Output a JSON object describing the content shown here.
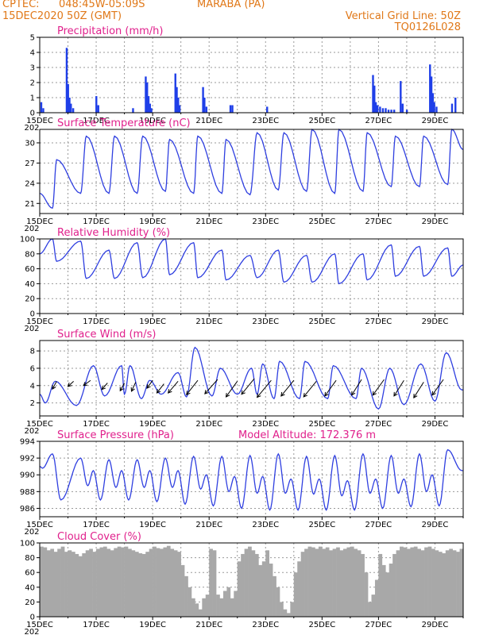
{
  "header": {
    "source": "CPTEC:",
    "coords": "048:45W-05:09S",
    "location": "MARABA (PA)",
    "run_time": "15DEC2020 50Z (GMT)",
    "grid_line": "Vertical Grid Line: 50Z",
    "product_code": "TQ0126L028"
  },
  "colors": {
    "header_text": "#e07818",
    "panel_title": "#e0208c",
    "series_line": "#2f3fe0",
    "bar_fill": "#1f3fe8",
    "cloud_fill": "#a8a8a8",
    "grid": "#9a9a9a"
  },
  "x_axis": {
    "start": "15DEC2020",
    "end": "30DEC2020",
    "tick_labels": [
      "15DEC",
      "17DEC",
      "19DEC",
      "21DEC",
      "23DEC",
      "25DEC",
      "27DEC",
      "29DEC"
    ],
    "year_fragment": "202"
  },
  "chart_data": [
    {
      "type": "bar",
      "title": "Precipitation (mm/h)",
      "ylim": [
        0,
        5
      ],
      "yticks": [
        0,
        1,
        2,
        3,
        4,
        5
      ],
      "grid": true,
      "events": [
        {
          "day": 0.05,
          "value": 0.7
        },
        {
          "day": 0.12,
          "value": 0.3
        },
        {
          "day": 0.95,
          "value": 4.3
        },
        {
          "day": 1.0,
          "value": 1.9
        },
        {
          "day": 1.05,
          "value": 1.0
        },
        {
          "day": 1.1,
          "value": 0.6
        },
        {
          "day": 1.18,
          "value": 0.3
        },
        {
          "day": 2.0,
          "value": 1.1
        },
        {
          "day": 2.07,
          "value": 0.5
        },
        {
          "day": 3.3,
          "value": 0.3
        },
        {
          "day": 3.75,
          "value": 2.4
        },
        {
          "day": 3.8,
          "value": 2.0
        },
        {
          "day": 3.85,
          "value": 1.1
        },
        {
          "day": 3.9,
          "value": 0.6
        },
        {
          "day": 3.95,
          "value": 0.3
        },
        {
          "day": 4.8,
          "value": 2.6
        },
        {
          "day": 4.85,
          "value": 1.7
        },
        {
          "day": 4.9,
          "value": 1.0
        },
        {
          "day": 4.95,
          "value": 0.5
        },
        {
          "day": 5.78,
          "value": 1.7
        },
        {
          "day": 5.83,
          "value": 1.0
        },
        {
          "day": 5.9,
          "value": 0.4
        },
        {
          "day": 6.75,
          "value": 0.5
        },
        {
          "day": 6.82,
          "value": 0.5
        },
        {
          "day": 8.05,
          "value": 0.4
        },
        {
          "day": 11.8,
          "value": 2.5
        },
        {
          "day": 11.85,
          "value": 1.8
        },
        {
          "day": 11.9,
          "value": 0.7
        },
        {
          "day": 11.96,
          "value": 0.5
        },
        {
          "day": 12.05,
          "value": 0.4
        },
        {
          "day": 12.15,
          "value": 0.3
        },
        {
          "day": 12.25,
          "value": 0.3
        },
        {
          "day": 12.35,
          "value": 0.2
        },
        {
          "day": 12.45,
          "value": 0.2
        },
        {
          "day": 12.55,
          "value": 0.2
        },
        {
          "day": 12.78,
          "value": 2.1
        },
        {
          "day": 12.85,
          "value": 0.6
        },
        {
          "day": 13.0,
          "value": 0.2
        },
        {
          "day": 13.82,
          "value": 3.2
        },
        {
          "day": 13.87,
          "value": 2.4
        },
        {
          "day": 13.92,
          "value": 1.3
        },
        {
          "day": 13.97,
          "value": 0.7
        },
        {
          "day": 14.05,
          "value": 0.4
        },
        {
          "day": 14.6,
          "value": 0.6
        },
        {
          "day": 14.72,
          "value": 1.0
        }
      ]
    },
    {
      "type": "line",
      "title": "Surface Temperature (nC)",
      "ylim": [
        19.5,
        32
      ],
      "yticks": [
        21,
        24,
        27,
        30
      ],
      "grid": true,
      "max_times": [
        0.6,
        1.65,
        2.65,
        3.65,
        4.6,
        5.6,
        6.6,
        7.7,
        8.65,
        9.65,
        10.6,
        11.6,
        12.6,
        13.6,
        14.6
      ],
      "max_values": [
        27.5,
        31,
        31,
        31,
        30.5,
        31,
        30.5,
        31.5,
        31.5,
        32,
        32,
        31.5,
        31,
        31,
        32
      ],
      "min_times": [
        0.45,
        1.45,
        2.45,
        3.45,
        4.45,
        5.45,
        6.45,
        7.45,
        8.45,
        9.45,
        10.45,
        11.45,
        12.45,
        13.45,
        14.45
      ],
      "min_values": [
        20.3,
        22.5,
        22.5,
        22.5,
        22.8,
        22.5,
        22.5,
        22.3,
        23,
        22.8,
        22.5,
        22.8,
        23.5,
        23.5,
        23.8
      ],
      "start_value": 22.5,
      "end_value": 29
    },
    {
      "type": "line",
      "title": "Relative Humidity (%)",
      "ylim": [
        0,
        100
      ],
      "yticks": [
        0,
        20,
        40,
        60,
        80,
        100
      ],
      "grid": true,
      "max_times": [
        0.45,
        1.45,
        2.45,
        3.45,
        4.45,
        5.45,
        6.45,
        7.45,
        8.45,
        9.45,
        10.45,
        11.45,
        12.45,
        13.45,
        14.45
      ],
      "max_values": [
        100,
        97,
        85,
        95,
        100,
        95,
        85,
        78,
        85,
        78,
        80,
        80,
        92,
        90,
        88
      ],
      "min_times": [
        0.6,
        1.65,
        2.65,
        3.65,
        4.6,
        5.6,
        6.6,
        7.7,
        8.65,
        9.65,
        10.6,
        11.6,
        12.6,
        13.6,
        14.6
      ],
      "min_values": [
        70,
        47,
        47,
        48,
        52,
        48,
        45,
        48,
        42,
        42,
        40,
        45,
        50,
        50,
        50
      ],
      "start_value": 80,
      "end_value": 65
    },
    {
      "type": "line",
      "title": "Surface Wind (m/s)",
      "ylim": [
        0.5,
        9.2
      ],
      "yticks": [
        2,
        4,
        6,
        8
      ],
      "grid": true,
      "max_times": [
        0.55,
        1.9,
        2.9,
        3.2,
        3.9,
        4.9,
        5.5,
        6.4,
        7.5,
        7.9,
        8.5,
        9.4,
        10.4,
        11.4,
        12.4,
        13.5,
        14.4
      ],
      "max_values": [
        4.5,
        6.3,
        6.3,
        6.3,
        4.6,
        5.5,
        8.4,
        6.0,
        6.0,
        6.5,
        6.8,
        6.8,
        6.3,
        6.0,
        6.0,
        6.5,
        7.8
      ],
      "min_times": [
        0.2,
        1.3,
        2.3,
        3.0,
        3.6,
        4.3,
        5.2,
        6.1,
        7.0,
        7.7,
        8.3,
        9.2,
        10.2,
        11.2,
        12.0,
        12.9,
        14.0,
        14.95
      ],
      "min_values": [
        2.0,
        1.7,
        2.8,
        3.0,
        2.5,
        3.0,
        2.7,
        2.8,
        3.0,
        3.0,
        2.5,
        2.5,
        2.5,
        2.5,
        1.3,
        1.8,
        2.2,
        3.5
      ],
      "start_value": 3.0,
      "end_value": 3.5,
      "arrows": [
        {
          "day": 0.6,
          "speed": 4.5,
          "dx": -0.15,
          "dy": 0.3
        },
        {
          "day": 1.2,
          "speed": 4.5,
          "dx": -0.2,
          "dy": 0.2
        },
        {
          "day": 1.8,
          "speed": 4.6,
          "dx": -0.25,
          "dy": 0.2
        },
        {
          "day": 2.4,
          "speed": 4.3,
          "dx": -0.2,
          "dy": 0.25
        },
        {
          "day": 3.0,
          "speed": 4.3,
          "dx": -0.15,
          "dy": 0.3
        },
        {
          "day": 3.4,
          "speed": 4.4,
          "dx": -0.15,
          "dy": 0.35
        },
        {
          "day": 4.0,
          "speed": 4.6,
          "dx": -0.2,
          "dy": 0.3
        },
        {
          "day": 4.4,
          "speed": 4.2,
          "dx": -0.25,
          "dy": 0.35
        },
        {
          "day": 4.9,
          "speed": 4.5,
          "dx": -0.35,
          "dy": 0.45
        },
        {
          "day": 5.6,
          "speed": 4.6,
          "dx": -0.4,
          "dy": 0.55
        },
        {
          "day": 6.3,
          "speed": 4.7,
          "dx": -0.45,
          "dy": 0.55
        },
        {
          "day": 7.0,
          "speed": 4.5,
          "dx": -0.4,
          "dy": 0.6
        },
        {
          "day": 7.6,
          "speed": 4.8,
          "dx": -0.45,
          "dy": 0.6
        },
        {
          "day": 8.2,
          "speed": 4.6,
          "dx": -0.5,
          "dy": 0.65
        },
        {
          "day": 9.0,
          "speed": 4.6,
          "dx": -0.45,
          "dy": 0.6
        },
        {
          "day": 9.8,
          "speed": 4.5,
          "dx": -0.45,
          "dy": 0.6
        },
        {
          "day": 10.5,
          "speed": 4.6,
          "dx": -0.4,
          "dy": 0.6
        },
        {
          "day": 11.4,
          "speed": 4.7,
          "dx": -0.35,
          "dy": 0.6
        },
        {
          "day": 12.2,
          "speed": 4.7,
          "dx": -0.4,
          "dy": 0.6
        },
        {
          "day": 12.9,
          "speed": 4.6,
          "dx": -0.35,
          "dy": 0.6
        },
        {
          "day": 13.6,
          "speed": 4.4,
          "dx": -0.35,
          "dy": 0.6
        },
        {
          "day": 14.3,
          "speed": 4.7,
          "dx": -0.4,
          "dy": 0.6
        }
      ]
    },
    {
      "type": "line",
      "title": "Surface Pressure (hPa)",
      "annotation": "Model Altitude: 172.376 m",
      "ylim": [
        985,
        994
      ],
      "yticks": [
        986,
        988,
        990,
        992,
        994
      ],
      "grid": true,
      "max_times": [
        0.45,
        1.45,
        1.9,
        2.45,
        2.9,
        3.45,
        3.9,
        4.45,
        4.9,
        5.45,
        5.9,
        6.45,
        6.9,
        7.45,
        7.9,
        8.45,
        8.9,
        9.45,
        9.9,
        10.45,
        10.9,
        11.45,
        11.9,
        12.45,
        12.9,
        13.45,
        13.9,
        14.45
      ],
      "max_values": [
        992.5,
        992,
        990.5,
        991.8,
        990.5,
        991.8,
        990.5,
        992,
        990.5,
        992.2,
        990,
        992.2,
        989.8,
        992.3,
        989.8,
        992.5,
        989.5,
        992.2,
        989.5,
        992.3,
        989.3,
        992.5,
        989.5,
        992.3,
        989.5,
        992.5,
        990,
        993
      ],
      "min_times": [
        0.1,
        0.75,
        1.7,
        2.15,
        2.7,
        3.15,
        3.7,
        4.15,
        4.7,
        5.15,
        5.7,
        6.15,
        6.7,
        7.15,
        7.7,
        8.15,
        8.7,
        9.15,
        9.7,
        10.15,
        10.7,
        11.15,
        11.7,
        12.15,
        12.7,
        13.15,
        13.7,
        14.15,
        14.95
      ],
      "min_values": [
        990.8,
        987,
        988.7,
        987,
        988.5,
        987,
        988.5,
        986.8,
        988.5,
        986.5,
        988.3,
        986.3,
        988,
        986,
        987.8,
        985.8,
        987.8,
        985.8,
        987.7,
        985.8,
        987.5,
        985.8,
        987.8,
        986,
        987.8,
        986.2,
        988,
        986.3,
        990.5
      ],
      "start_value": 991,
      "end_value": 990.5
    },
    {
      "type": "area",
      "title": "Cloud Cover (%)",
      "ylim": [
        0,
        100
      ],
      "yticks": [
        0,
        20,
        40,
        60,
        80,
        100
      ],
      "grid": true,
      "samples_per_day": 8,
      "values": [
        95,
        94,
        90,
        92,
        88,
        92,
        95,
        88,
        90,
        88,
        85,
        82,
        86,
        90,
        92,
        88,
        92,
        94,
        95,
        92,
        90,
        93,
        95,
        94,
        95,
        92,
        90,
        88,
        86,
        85,
        88,
        92,
        95,
        93,
        92,
        94,
        96,
        92,
        90,
        88,
        70,
        55,
        40,
        25,
        18,
        10,
        25,
        30,
        92,
        90,
        30,
        25,
        35,
        40,
        25,
        35,
        75,
        85,
        92,
        95,
        90,
        85,
        70,
        75,
        90,
        72,
        55,
        40,
        20,
        10,
        5,
        20,
        60,
        75,
        88,
        92,
        95,
        94,
        92,
        95,
        92,
        94,
        90,
        92,
        94,
        90,
        92,
        94,
        95,
        92,
        90,
        85,
        60,
        20,
        30,
        50,
        85,
        70,
        60,
        72,
        85,
        90,
        95,
        94,
        92,
        94,
        95,
        92,
        90,
        94,
        95,
        92,
        90,
        88,
        86,
        90,
        92,
        90,
        88,
        92
      ]
    }
  ]
}
